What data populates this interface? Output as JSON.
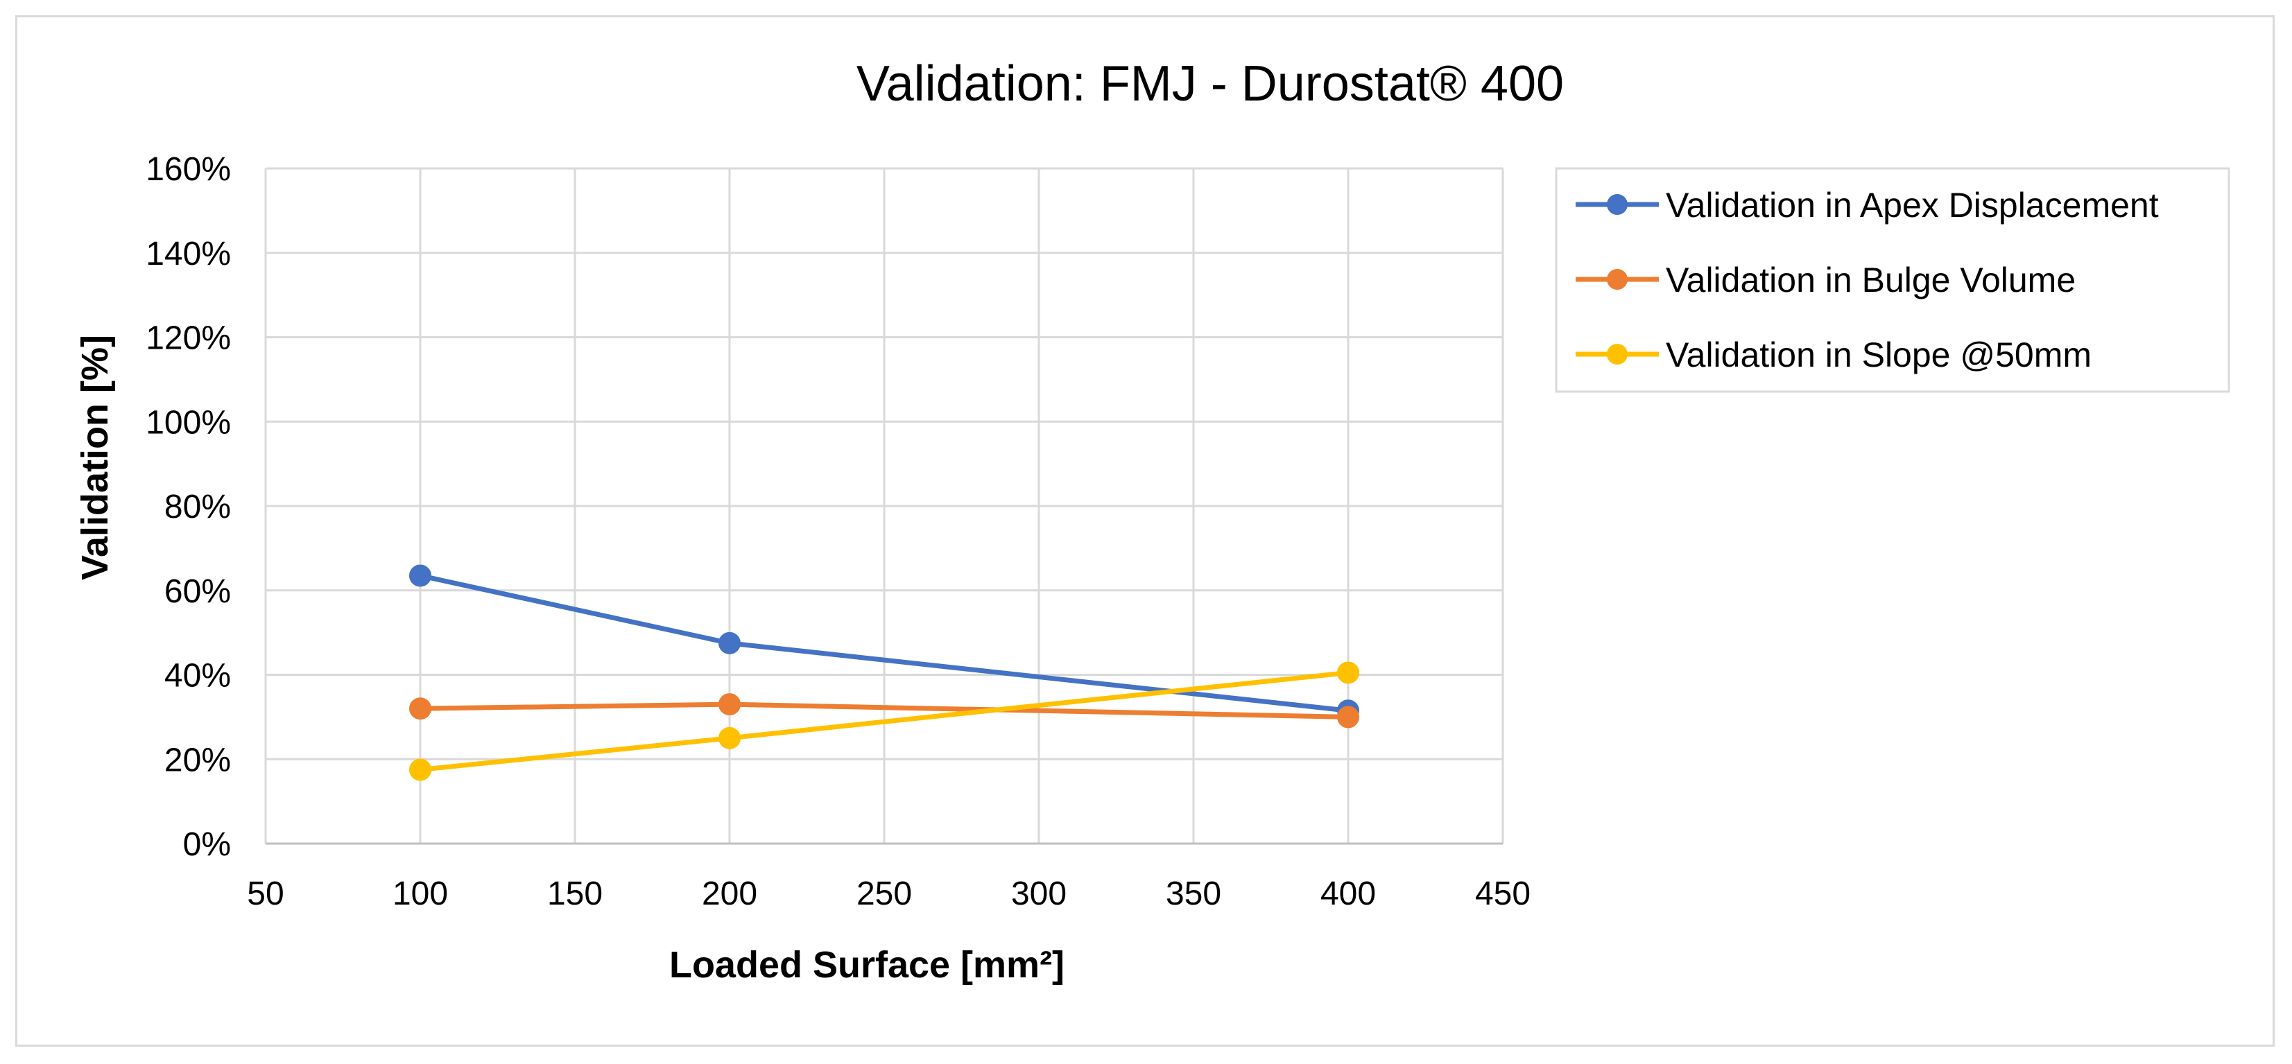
{
  "chart_data": {
    "type": "line",
    "title": "Validation: FMJ - Durostat® 400",
    "xlabel": "Loaded Surface [mm²]",
    "ylabel": "Validation [%]",
    "xlim": [
      50,
      450
    ],
    "ylim": [
      0,
      160
    ],
    "x_ticks": [
      50,
      100,
      150,
      200,
      250,
      300,
      350,
      400,
      450
    ],
    "y_ticks": [
      0,
      20,
      40,
      60,
      80,
      100,
      120,
      140,
      160
    ],
    "y_tick_labels": [
      "0%",
      "20%",
      "40%",
      "60%",
      "80%",
      "100%",
      "120%",
      "140%",
      "160%"
    ],
    "x_tick_labels": [
      "50",
      "100",
      "150",
      "200",
      "250",
      "300",
      "350",
      "400",
      "450"
    ],
    "grid": true,
    "legend_position": "right",
    "x": [
      100,
      200,
      400
    ],
    "series": [
      {
        "name": "Validation in Apex Displacement",
        "color": "#4472C4",
        "values": [
          63.5,
          47.5,
          31.5
        ]
      },
      {
        "name": "Validation in Bulge Volume",
        "color": "#ED7D31",
        "values": [
          32,
          33,
          30
        ]
      },
      {
        "name": "Validation in Slope @50mm",
        "color": "#FFC000",
        "values": [
          17.5,
          25,
          40.5
        ]
      }
    ]
  }
}
